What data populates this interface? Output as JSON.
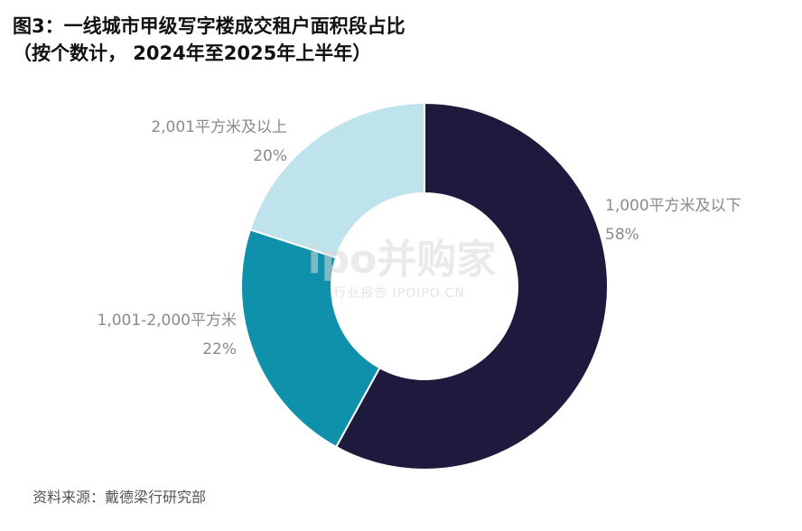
{
  "title": {
    "line1": "图3：一线城市甲级写字楼成交租户面积段占比",
    "line2": "（按个数计， 2024年至2025年上半年）"
  },
  "chart_data": {
    "type": "pie",
    "donut": true,
    "categories": [
      "1,000平方米及以下",
      "1,001-2,000平方米",
      "2,001平方米及以上"
    ],
    "values": [
      58,
      22,
      20
    ],
    "value_labels": [
      "58%",
      "22%",
      "20%"
    ],
    "colors": [
      "#1e1a3e",
      "#0f91ab",
      "#bfe3ec"
    ]
  },
  "watermark": {
    "main": "ipo并购家",
    "sub": "行业报告 IPOIPO.CN"
  },
  "source": "资料来源：戴德梁行研究部"
}
